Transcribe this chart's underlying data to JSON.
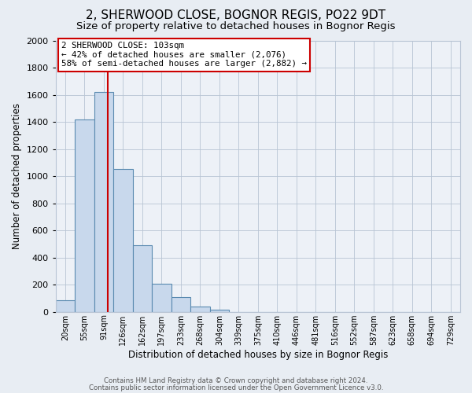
{
  "title": "2, SHERWOOD CLOSE, BOGNOR REGIS, PO22 9DT",
  "subtitle": "Size of property relative to detached houses in Bognor Regis",
  "xlabel": "Distribution of detached houses by size in Bognor Regis",
  "ylabel": "Number of detached properties",
  "bar_labels": [
    "20sqm",
    "55sqm",
    "91sqm",
    "126sqm",
    "162sqm",
    "197sqm",
    "233sqm",
    "268sqm",
    "304sqm",
    "339sqm",
    "375sqm",
    "410sqm",
    "446sqm",
    "481sqm",
    "516sqm",
    "552sqm",
    "587sqm",
    "623sqm",
    "658sqm",
    "694sqm",
    "729sqm"
  ],
  "bar_heights": [
    85,
    1415,
    1620,
    1050,
    490,
    205,
    110,
    40,
    18,
    0,
    0,
    0,
    0,
    0,
    0,
    0,
    0,
    0,
    0,
    0,
    0
  ],
  "bar_color": "#c8d8ec",
  "bar_edge_color": "#5a8ab0",
  "vline_x_data": 2.72,
  "vline_color": "#cc0000",
  "annotation_title": "2 SHERWOOD CLOSE: 103sqm",
  "annotation_line1": "← 42% of detached houses are smaller (2,076)",
  "annotation_line2": "58% of semi-detached houses are larger (2,882) →",
  "annotation_box_color": "#ffffff",
  "annotation_box_edge": "#cc0000",
  "ylim": [
    0,
    2000
  ],
  "yticks": [
    0,
    200,
    400,
    600,
    800,
    1000,
    1200,
    1400,
    1600,
    1800,
    2000
  ],
  "background_color": "#e8edf3",
  "plot_bg_color": "#edf1f7",
  "footer1": "Contains HM Land Registry data © Crown copyright and database right 2024.",
  "footer2": "Contains public sector information licensed under the Open Government Licence v3.0.",
  "title_fontsize": 11,
  "subtitle_fontsize": 9.5,
  "xlabel_fontsize": 8.5,
  "ylabel_fontsize": 8.5,
  "ann_fontsize": 7.8,
  "grid_color": "#b8c4d4",
  "spine_color": "#b8c4d4"
}
